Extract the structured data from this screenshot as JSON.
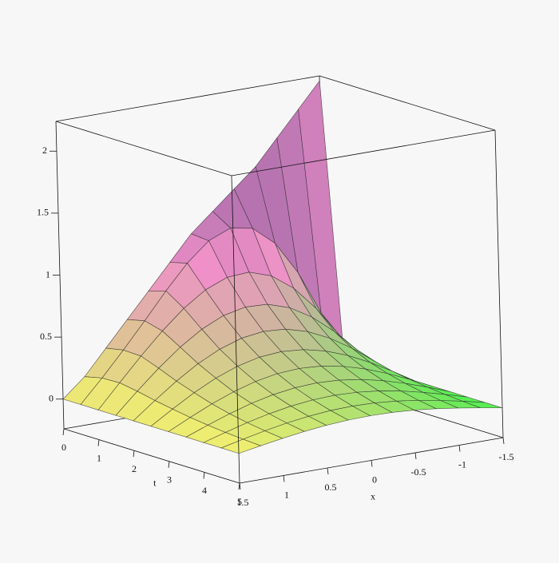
{
  "chart_data": {
    "type": "surface3d",
    "x_label": "x",
    "t_label": "t",
    "x": [
      -1.5,
      -1.25,
      -1,
      -0.75,
      -0.5,
      -0.25,
      0,
      0.25,
      0.5,
      0.75,
      1,
      1.25,
      1.5
    ],
    "t": [
      0,
      0.5,
      1,
      1.5,
      2,
      2.5,
      3,
      3.5,
      4,
      4.5,
      5
    ],
    "z": [
      [
        2.2,
        2.0,
        1.8,
        1.6,
        1.45,
        1.3,
        1.15,
        0.95,
        0.75,
        0.55,
        0.35,
        0.15,
        0
      ],
      [
        0,
        0.405,
        0.76,
        1.025,
        1.176,
        1.209,
        1.137,
        0.987,
        0.794,
        0.583,
        0.378,
        0.183,
        0
      ],
      [
        0,
        0.27,
        0.513,
        0.707,
        0.837,
        0.897,
        0.886,
        0.815,
        0.697,
        0.545,
        0.373,
        0.188,
        0
      ],
      [
        0,
        0.194,
        0.371,
        0.518,
        0.624,
        0.682,
        0.69,
        0.652,
        0.572,
        0.458,
        0.319,
        0.164,
        0
      ],
      [
        0,
        0.145,
        0.279,
        0.391,
        0.475,
        0.525,
        0.537,
        0.513,
        0.455,
        0.369,
        0.259,
        0.133,
        0
      ],
      [
        0,
        0.108,
        0.209,
        0.296,
        0.362,
        0.404,
        0.418,
        0.404,
        0.362,
        0.296,
        0.209,
        0.108,
        0
      ],
      [
        0,
        0.084,
        0.163,
        0.23,
        0.282,
        0.315,
        0.326,
        0.315,
        0.282,
        0.23,
        0.163,
        0.084,
        0
      ],
      [
        0,
        0.066,
        0.127,
        0.18,
        0.22,
        0.245,
        0.254,
        0.245,
        0.22,
        0.18,
        0.127,
        0.066,
        0
      ],
      [
        0,
        0.051,
        0.099,
        0.14,
        0.171,
        0.191,
        0.198,
        0.191,
        0.171,
        0.14,
        0.099,
        0.051,
        0
      ],
      [
        0,
        0.04,
        0.077,
        0.109,
        0.133,
        0.149,
        0.154,
        0.149,
        0.133,
        0.109,
        0.077,
        0.04,
        0
      ],
      [
        0,
        0.031,
        0.06,
        0.085,
        0.104,
        0.116,
        0.12,
        0.116,
        0.104,
        0.085,
        0.06,
        0.031,
        0
      ]
    ],
    "xlim": [
      1.5,
      -1.5
    ],
    "tlim": [
      0,
      5
    ],
    "zlim": [
      -0.24,
      2.24
    ],
    "xticks": [
      1.5,
      1,
      0.5,
      0,
      -0.5,
      -1,
      -1.5
    ],
    "tticks": [
      0,
      1,
      2,
      3,
      4,
      5
    ],
    "zticks": [
      0,
      0.5,
      1,
      1.5,
      2
    ],
    "colors": [
      "#50f050",
      "#f4f070",
      "#f090c8",
      "#30307a"
    ]
  }
}
